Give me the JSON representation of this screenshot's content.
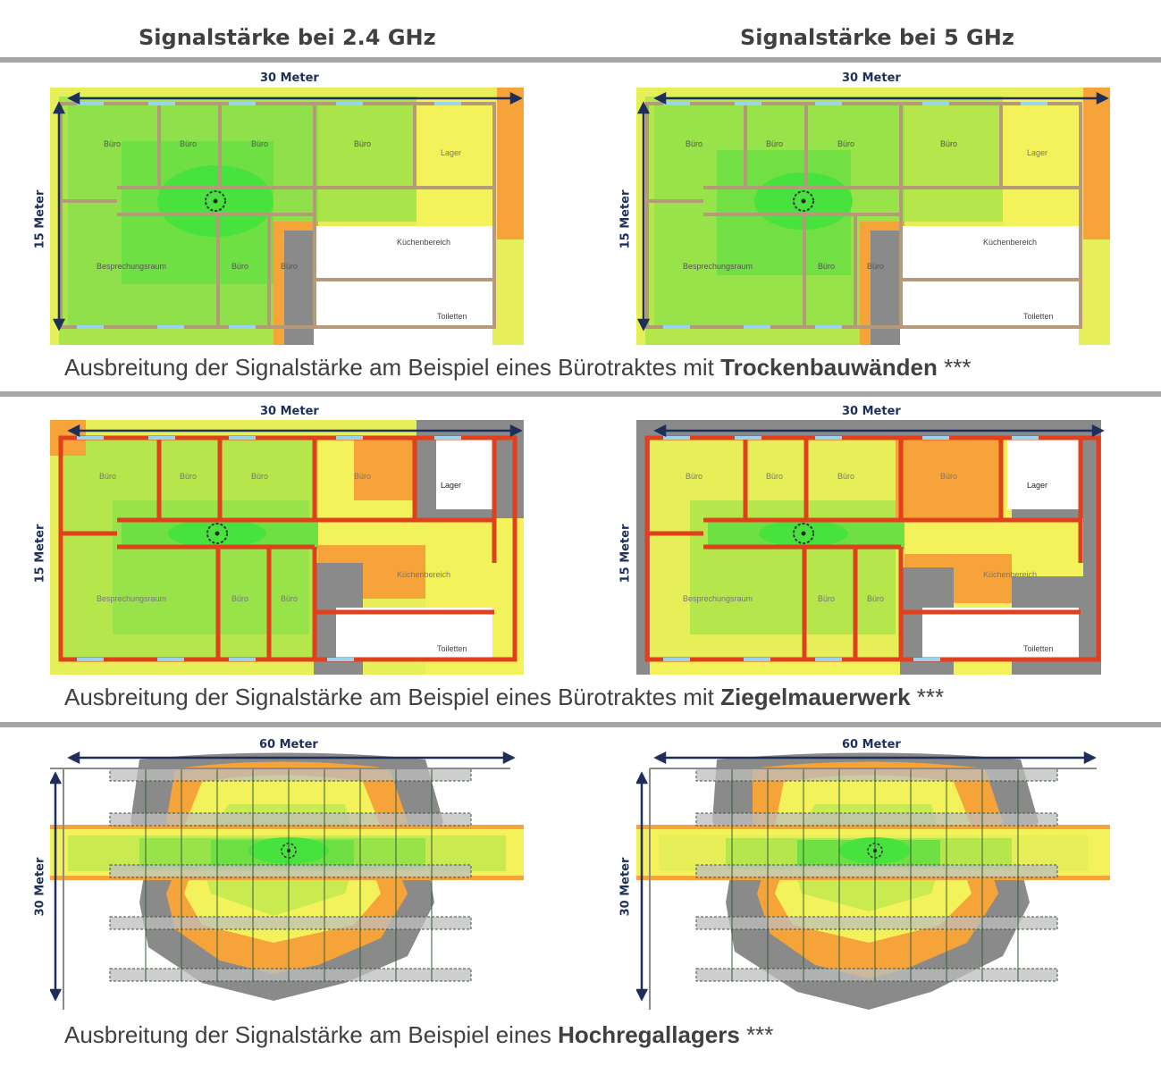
{
  "headers": {
    "left": "Signalstärke bei 2.4 GHz",
    "right": "Signalstärke bei 5 GHz"
  },
  "dimensions": {
    "office_width": "30 Meter",
    "office_height": "15 Meter",
    "warehouse_width": "60 Meter",
    "warehouse_height": "30 Meter"
  },
  "rooms": {
    "office": "Büro",
    "storage": "Lager",
    "meeting": "Besprechungsraum",
    "kitchen": "Küchenbereich",
    "toilets": "Toiletten"
  },
  "captions": {
    "drywall": {
      "prefix": "Ausbreitung der Signalstärke am Beispiel eines Bürotraktes mit ",
      "bold": "Trockenbauwänden",
      "suffix": " ***"
    },
    "brick": {
      "prefix": "Ausbreitung der Signalstärke am Beispiel eines Bürotraktes mit ",
      "bold": "Ziegelmauerwerk",
      "suffix": " ***"
    },
    "warehouse": {
      "prefix": "Ausbreitung der Signalstärke am Beispiel eines ",
      "bold": "Hochregallagers",
      "suffix": " ***"
    }
  },
  "colors": {
    "strong": "#2ee83a",
    "good": "#8fe04a",
    "medium": "#c9ea50",
    "weak": "#f3f25a",
    "poor": "#f6a43a",
    "none": "#8a8a8a",
    "drywall_wall": "#b49a78",
    "brick_wall": "#e0401c",
    "dimension": "#1f2f5c"
  }
}
